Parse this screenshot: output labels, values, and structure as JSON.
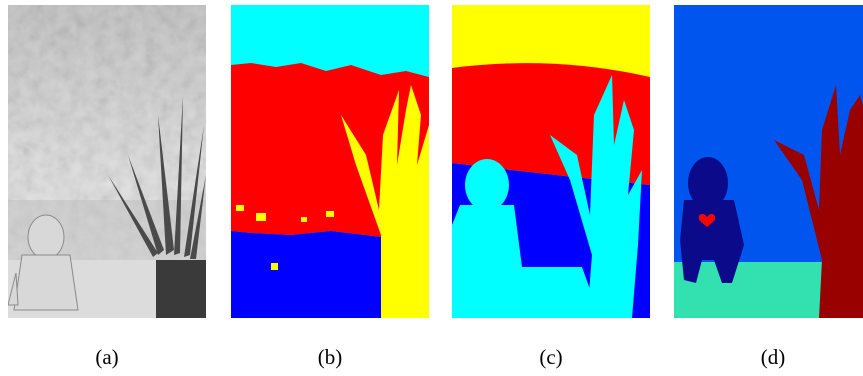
{
  "captions": [
    "(a)",
    "(b)",
    "(c)",
    "(d)"
  ],
  "colors": {
    "cyan": "#00ffff",
    "red": "#ff0000",
    "yellow": "#ffff00",
    "blue": "#0000ff",
    "sky_blue": "#0055ee",
    "dark_red": "#990000",
    "navy": "#0a0a8a",
    "aquamarine": "#33e0b0"
  },
  "panels": [
    {
      "id": "a",
      "kind": "grayscale photo"
    },
    {
      "id": "b",
      "kind": "segmentation map"
    },
    {
      "id": "c",
      "kind": "segmentation map"
    },
    {
      "id": "d",
      "kind": "segmentation map"
    }
  ]
}
